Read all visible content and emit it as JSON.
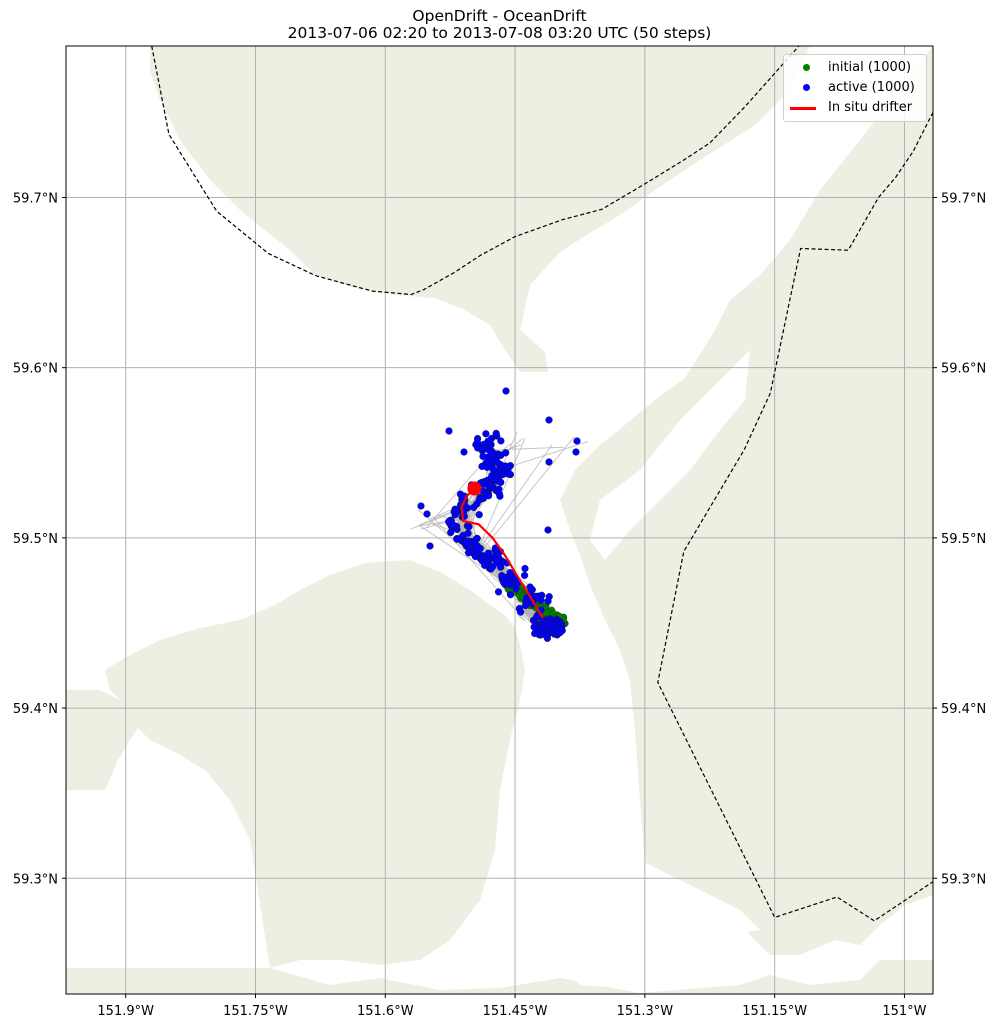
{
  "title": {
    "line1": "OpenDrift - OceanDrift",
    "line2": "2013-07-06 02:20 to 2013-07-08 03:20 UTC (50 steps)"
  },
  "axes": {
    "x_ticks": [
      {
        "lon": -151.9,
        "label": "151.9°W"
      },
      {
        "lon": -151.75,
        "label": "151.75°W"
      },
      {
        "lon": -151.6,
        "label": "151.6°W"
      },
      {
        "lon": -151.45,
        "label": "151.45°W"
      },
      {
        "lon": -151.3,
        "label": "151.3°W"
      },
      {
        "lon": -151.15,
        "label": "151.15°W"
      },
      {
        "lon": -151.0,
        "label": "151°W"
      }
    ],
    "y_ticks": [
      {
        "lat": 59.3,
        "label": "59.3°N"
      },
      {
        "lat": 59.4,
        "label": "59.4°N"
      },
      {
        "lat": 59.5,
        "label": "59.5°N"
      },
      {
        "lat": 59.6,
        "label": "59.6°N"
      },
      {
        "lat": 59.7,
        "label": "59.7°N"
      }
    ],
    "lon_range": [
      -151.969,
      -150.967
    ],
    "lat_range": [
      59.232,
      59.789
    ],
    "grid": true
  },
  "legend": {
    "placement": "top-right",
    "items": [
      {
        "label": "initial (1000)",
        "color": "#008000",
        "kind": "dot"
      },
      {
        "label": "active (1000)",
        "color": "#0000ff",
        "kind": "dot"
      },
      {
        "label": "In situ drifter",
        "color": "#ff0000",
        "kind": "line"
      }
    ]
  },
  "colors": {
    "land": "#eeeee2",
    "sea": "#ffffff",
    "grid": "#b0b0b0",
    "trajectory": "#b3b3b3",
    "initial": "#008000",
    "active": "#0000ff",
    "drifter": "#ff0000",
    "boundary": "#000000"
  },
  "chart_data": {
    "type": "scatter",
    "drifter_track": [
      [
        -151.418,
        59.453
      ],
      [
        -151.432,
        59.465
      ],
      [
        -151.448,
        59.478
      ],
      [
        -151.462,
        59.49
      ],
      [
        -151.476,
        59.5
      ],
      [
        -151.492,
        59.508
      ],
      [
        -151.51,
        59.51
      ],
      [
        -151.512,
        59.518
      ],
      [
        -151.505,
        59.525
      ],
      [
        -151.497,
        59.529
      ]
    ],
    "drifter_end": [
      -151.497,
      59.529
    ],
    "boundary_lines": [
      [
        [
          -151.87,
          59.789
        ],
        [
          -151.85,
          59.737
        ],
        [
          -151.795,
          59.692
        ],
        [
          -151.735,
          59.667
        ],
        [
          -151.68,
          59.654
        ],
        [
          -151.615,
          59.645
        ],
        [
          -151.57,
          59.643
        ],
        [
          -151.555,
          59.646
        ],
        [
          -151.52,
          59.656
        ],
        [
          -151.49,
          59.666
        ],
        [
          -151.45,
          59.677
        ],
        [
          -151.395,
          59.687
        ],
        [
          -151.35,
          59.693
        ],
        [
          -151.3,
          59.708
        ],
        [
          -151.255,
          59.722
        ],
        [
          -151.225,
          59.732
        ],
        [
          -151.185,
          59.753
        ],
        [
          -151.155,
          59.77
        ],
        [
          -151.122,
          59.789
        ]
      ],
      [
        [
          -150.967,
          59.75
        ],
        [
          -150.99,
          59.727
        ],
        [
          -151.01,
          59.712
        ],
        [
          -151.03,
          59.7
        ],
        [
          -151.065,
          59.669
        ],
        [
          -151.12,
          59.67
        ],
        [
          -151.155,
          59.585
        ],
        [
          -151.185,
          59.552
        ],
        [
          -151.255,
          59.492
        ],
        [
          -151.285,
          59.415
        ],
        [
          -151.15,
          59.277
        ],
        [
          -151.078,
          59.289
        ],
        [
          -151.035,
          59.275
        ],
        [
          -150.967,
          59.298
        ]
      ]
    ]
  }
}
